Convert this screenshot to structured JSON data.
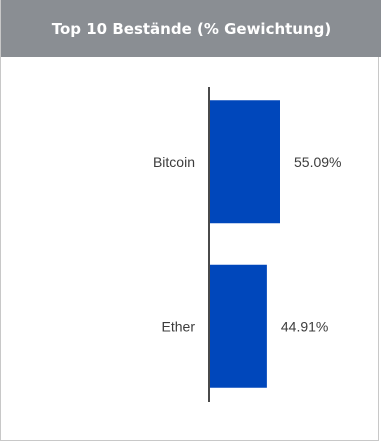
{
  "header": {
    "title": "Top 10 Bestände (% Gewichtung)"
  },
  "colors": {
    "header_bg": "#8a8e93",
    "bar": "#0047bb",
    "axis": "#4a4a4a",
    "label": "#3c3c3c"
  },
  "chart_data": {
    "type": "bar",
    "orientation": "horizontal",
    "title": "Top 10 Bestände (% Gewichtung)",
    "categories": [
      "Bitcoin",
      "Ether"
    ],
    "values": [
      55.09,
      44.91
    ],
    "value_labels": [
      "55.09%",
      "44.91%"
    ],
    "unit": "%",
    "xlim": [
      0,
      100
    ],
    "grid": false,
    "legend": "none"
  }
}
